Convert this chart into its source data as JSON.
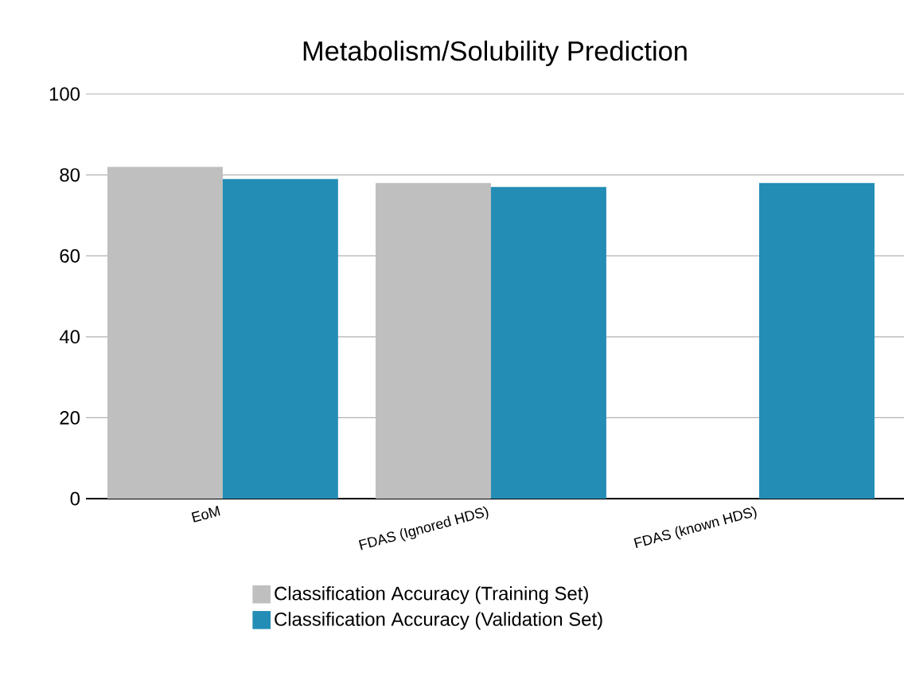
{
  "chart_data": {
    "type": "bar",
    "title": "Metabolism/Solubility Prediction",
    "categories": [
      "EoM",
      "FDAS (Ignored HDS)",
      "FDAS (known HDS)"
    ],
    "series": [
      {
        "name": "Classification Accuracy (Training Set)",
        "color": "#bfbfbf",
        "values": [
          82,
          78,
          null
        ]
      },
      {
        "name": "Classification Accuracy (Validation Set)",
        "color": "#238db5",
        "values": [
          79,
          77,
          78
        ]
      }
    ],
    "ylim": [
      0,
      100
    ],
    "yticks": [
      0,
      20,
      40,
      60,
      80,
      100
    ],
    "grid": "y",
    "legend": "bottom"
  }
}
